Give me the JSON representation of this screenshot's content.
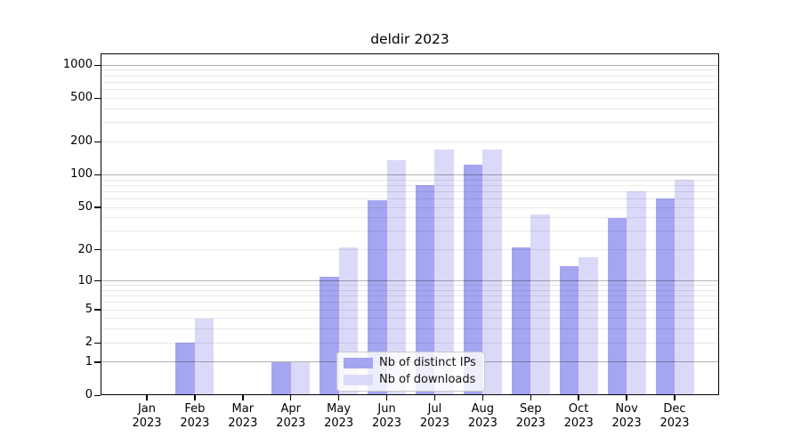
{
  "chart_data": {
    "type": "bar",
    "title": "deldir 2023",
    "categories": [
      "Jan 2023",
      "Feb 2023",
      "Mar 2023",
      "Apr 2023",
      "May 2023",
      "Jun 2023",
      "Jul 2023",
      "Aug 2023",
      "Sep 2023",
      "Oct 2023",
      "Nov 2023",
      "Dec 2023"
    ],
    "series": [
      {
        "name": "Nb of distinct IPs",
        "color": "#a5a5f1",
        "values": [
          0,
          2,
          0,
          1,
          11,
          58,
          81,
          125,
          21,
          14,
          40,
          61
        ]
      },
      {
        "name": "Nb of downloads",
        "color": "#dadaf8",
        "values": [
          0,
          4,
          0,
          1,
          21,
          136,
          170,
          170,
          43,
          17,
          71,
          90
        ]
      }
    ],
    "xlabel": "",
    "ylabel": "",
    "yscale": "log1p",
    "yticks": [
      0,
      1,
      2,
      5,
      10,
      20,
      50,
      100,
      200,
      500,
      1000
    ],
    "ylim": [
      0,
      1300
    ],
    "grid": "both",
    "legend_position": "lower center",
    "colors": {
      "major_grid": "#b3b3b3",
      "minor_grid": "#e9e9e9",
      "axis": "#000000",
      "background": "#ffffff"
    }
  }
}
